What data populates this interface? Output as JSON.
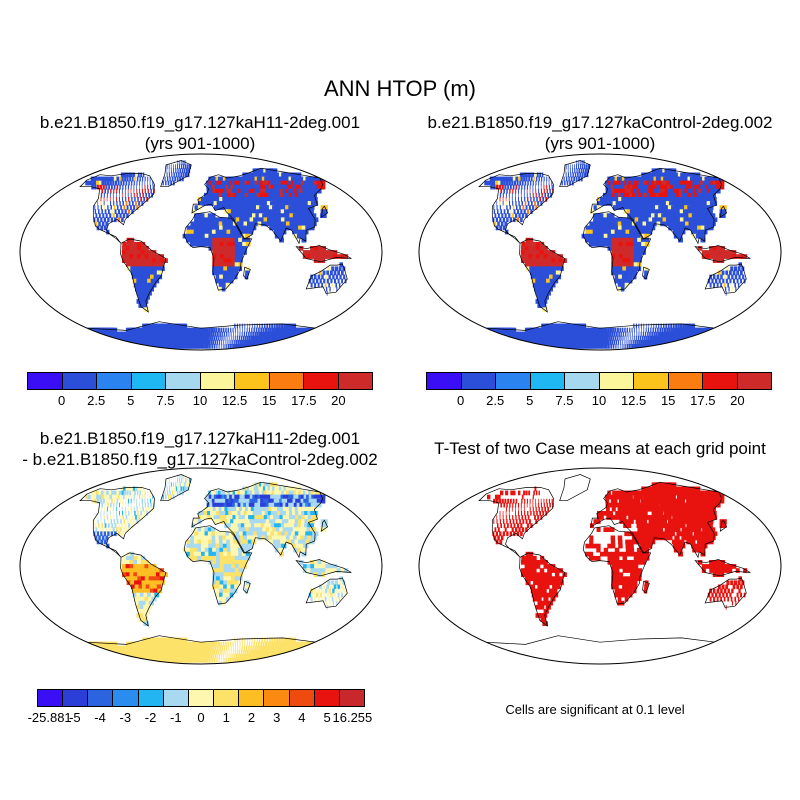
{
  "title": "ANN HTOP (m)",
  "panels": {
    "top_left": {
      "title_line1": "b.e21.B1850.f19_g17.127kaH11-2deg.001",
      "title_line2": "(yrs 901-1000)"
    },
    "top_right": {
      "title_line1": "b.e21.B1850.f19_g17.127kaControl-2deg.002",
      "title_line2": "(yrs 901-1000)"
    },
    "bottom_left": {
      "title_line1": "b.e21.B1850.f19_g17.127kaH11-2deg.001",
      "title_line2": "- b.e21.B1850.f19_g17.127kaControl-2deg.002"
    },
    "bottom_right": {
      "title_line1": "T-Test of two Case means at each grid point"
    }
  },
  "colorbar_abs": {
    "colors": [
      "#3b0ff5",
      "#2b4fd8",
      "#2b83f0",
      "#1fb8f2",
      "#a6d8f0",
      "#fbf59b",
      "#fcc31d",
      "#fb7d12",
      "#e8120f",
      "#cf2a2a"
    ],
    "labels": [
      "0",
      "2.5",
      "5",
      "7.5",
      "10",
      "12.5",
      "15",
      "17.5",
      "20"
    ]
  },
  "colorbar_diff": {
    "colors": [
      "#3b0ff5",
      "#2b3fd8",
      "#2c64e0",
      "#2b8cf0",
      "#22b5f2",
      "#a8d9f0",
      "#fdf7b0",
      "#fde26a",
      "#fcbe22",
      "#fb8a12",
      "#ef4a10",
      "#e8120f",
      "#c8272b"
    ],
    "labels": [
      "-25.881",
      "-5",
      "-4",
      "-3",
      "-2",
      "-1",
      "0",
      "1",
      "2",
      "3",
      "4",
      "5",
      "16.255"
    ]
  },
  "significance_note": "Cells are significant at 0.1 level",
  "icons": {
    "map": "world-map-robinson"
  }
}
